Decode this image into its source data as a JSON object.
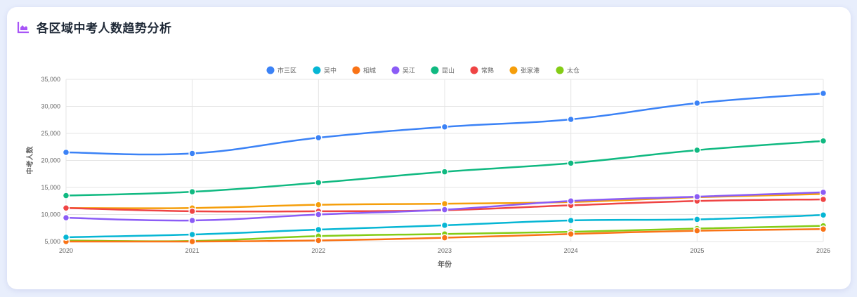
{
  "header": {
    "title": "各区域中考人数趋势分析",
    "icon": "area-chart-icon",
    "icon_color": "#a855f7"
  },
  "colors": {
    "background": "#e8eefc",
    "card": "#ffffff",
    "grid": "#e5e5e5",
    "title_text": "#1f2937"
  },
  "chart_data": {
    "type": "line",
    "title": "各区域中考人数趋势分析",
    "xlabel": "年份",
    "ylabel": "中考人数",
    "x": [
      "2020",
      "2021",
      "2022",
      "2023",
      "2024",
      "2025",
      "2026"
    ],
    "ylim": [
      5000,
      35000
    ],
    "yticks": [
      5000,
      10000,
      15000,
      20000,
      25000,
      30000,
      35000
    ],
    "ytick_labels": [
      "5,000",
      "10,000",
      "15,000",
      "20,000",
      "25,000",
      "30,000",
      "35,000"
    ],
    "grid": true,
    "legend_position": "top",
    "smooth": true,
    "series": [
      {
        "name": "市三区",
        "color": "#3b82f6",
        "values": [
          21500,
          21300,
          24200,
          26200,
          27600,
          30600,
          32400
        ]
      },
      {
        "name": "吴中",
        "color": "#06b6d4",
        "values": [
          5800,
          6300,
          7200,
          8000,
          8900,
          9100,
          9900
        ]
      },
      {
        "name": "相城",
        "color": "#f97316",
        "values": [
          5000,
          5000,
          5200,
          5700,
          6400,
          7000,
          7300
        ]
      },
      {
        "name": "吴江",
        "color": "#8b5cf6",
        "values": [
          9400,
          8900,
          10000,
          10900,
          12500,
          13300,
          14100
        ]
      },
      {
        "name": "昆山",
        "color": "#10b981",
        "values": [
          13500,
          14200,
          15900,
          17900,
          19500,
          21900,
          23600
        ]
      },
      {
        "name": "常熟",
        "color": "#ef4444",
        "values": [
          11200,
          10600,
          10600,
          10800,
          11700,
          12500,
          12800
        ]
      },
      {
        "name": "张家港",
        "color": "#f59e0b",
        "values": [
          11200,
          11200,
          11800,
          12000,
          12300,
          13200,
          13800
        ]
      },
      {
        "name": "太仓",
        "color": "#84cc16",
        "values": [
          5200,
          5100,
          6000,
          6400,
          6800,
          7400,
          7900
        ]
      }
    ]
  }
}
